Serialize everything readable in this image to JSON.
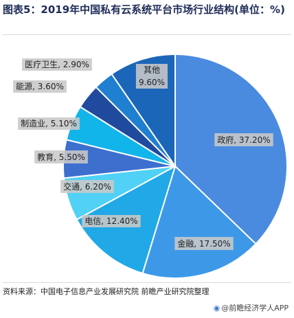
{
  "chart_data": {
    "type": "pie",
    "title": "图表5：2019年中国私有云系统平台市场行业结构(单位：%)",
    "slices": [
      {
        "label": "政府, 37.20%",
        "value": 37.2,
        "color": "#4a8be0"
      },
      {
        "label": "金融, 17.50%",
        "value": 17.5,
        "color": "#3d99e8"
      },
      {
        "label": "电信, 12.40%",
        "value": 12.4,
        "color": "#21a8e6"
      },
      {
        "label": "交通, 6.20%",
        "value": 6.2,
        "color": "#50d1f5"
      },
      {
        "label": "教育, 5.50%",
        "value": 5.5,
        "color": "#3d6fcf"
      },
      {
        "label": "制造业, 5.10%",
        "value": 5.1,
        "color": "#12b5ea"
      },
      {
        "label": "能源, 3.60%",
        "value": 3.6,
        "color": "#1f4a9e"
      },
      {
        "label": "医疗卫生, 2.90%",
        "value": 2.9,
        "color": "#1f7fd1"
      },
      {
        "label": "其他, 9.60%",
        "value": 9.6,
        "color": "#1b66b8"
      }
    ]
  },
  "source": "资料来源：中国电子信息产业发展研究院 前瞻产业研究院整理",
  "credit": "@前瞻经济学人APP"
}
